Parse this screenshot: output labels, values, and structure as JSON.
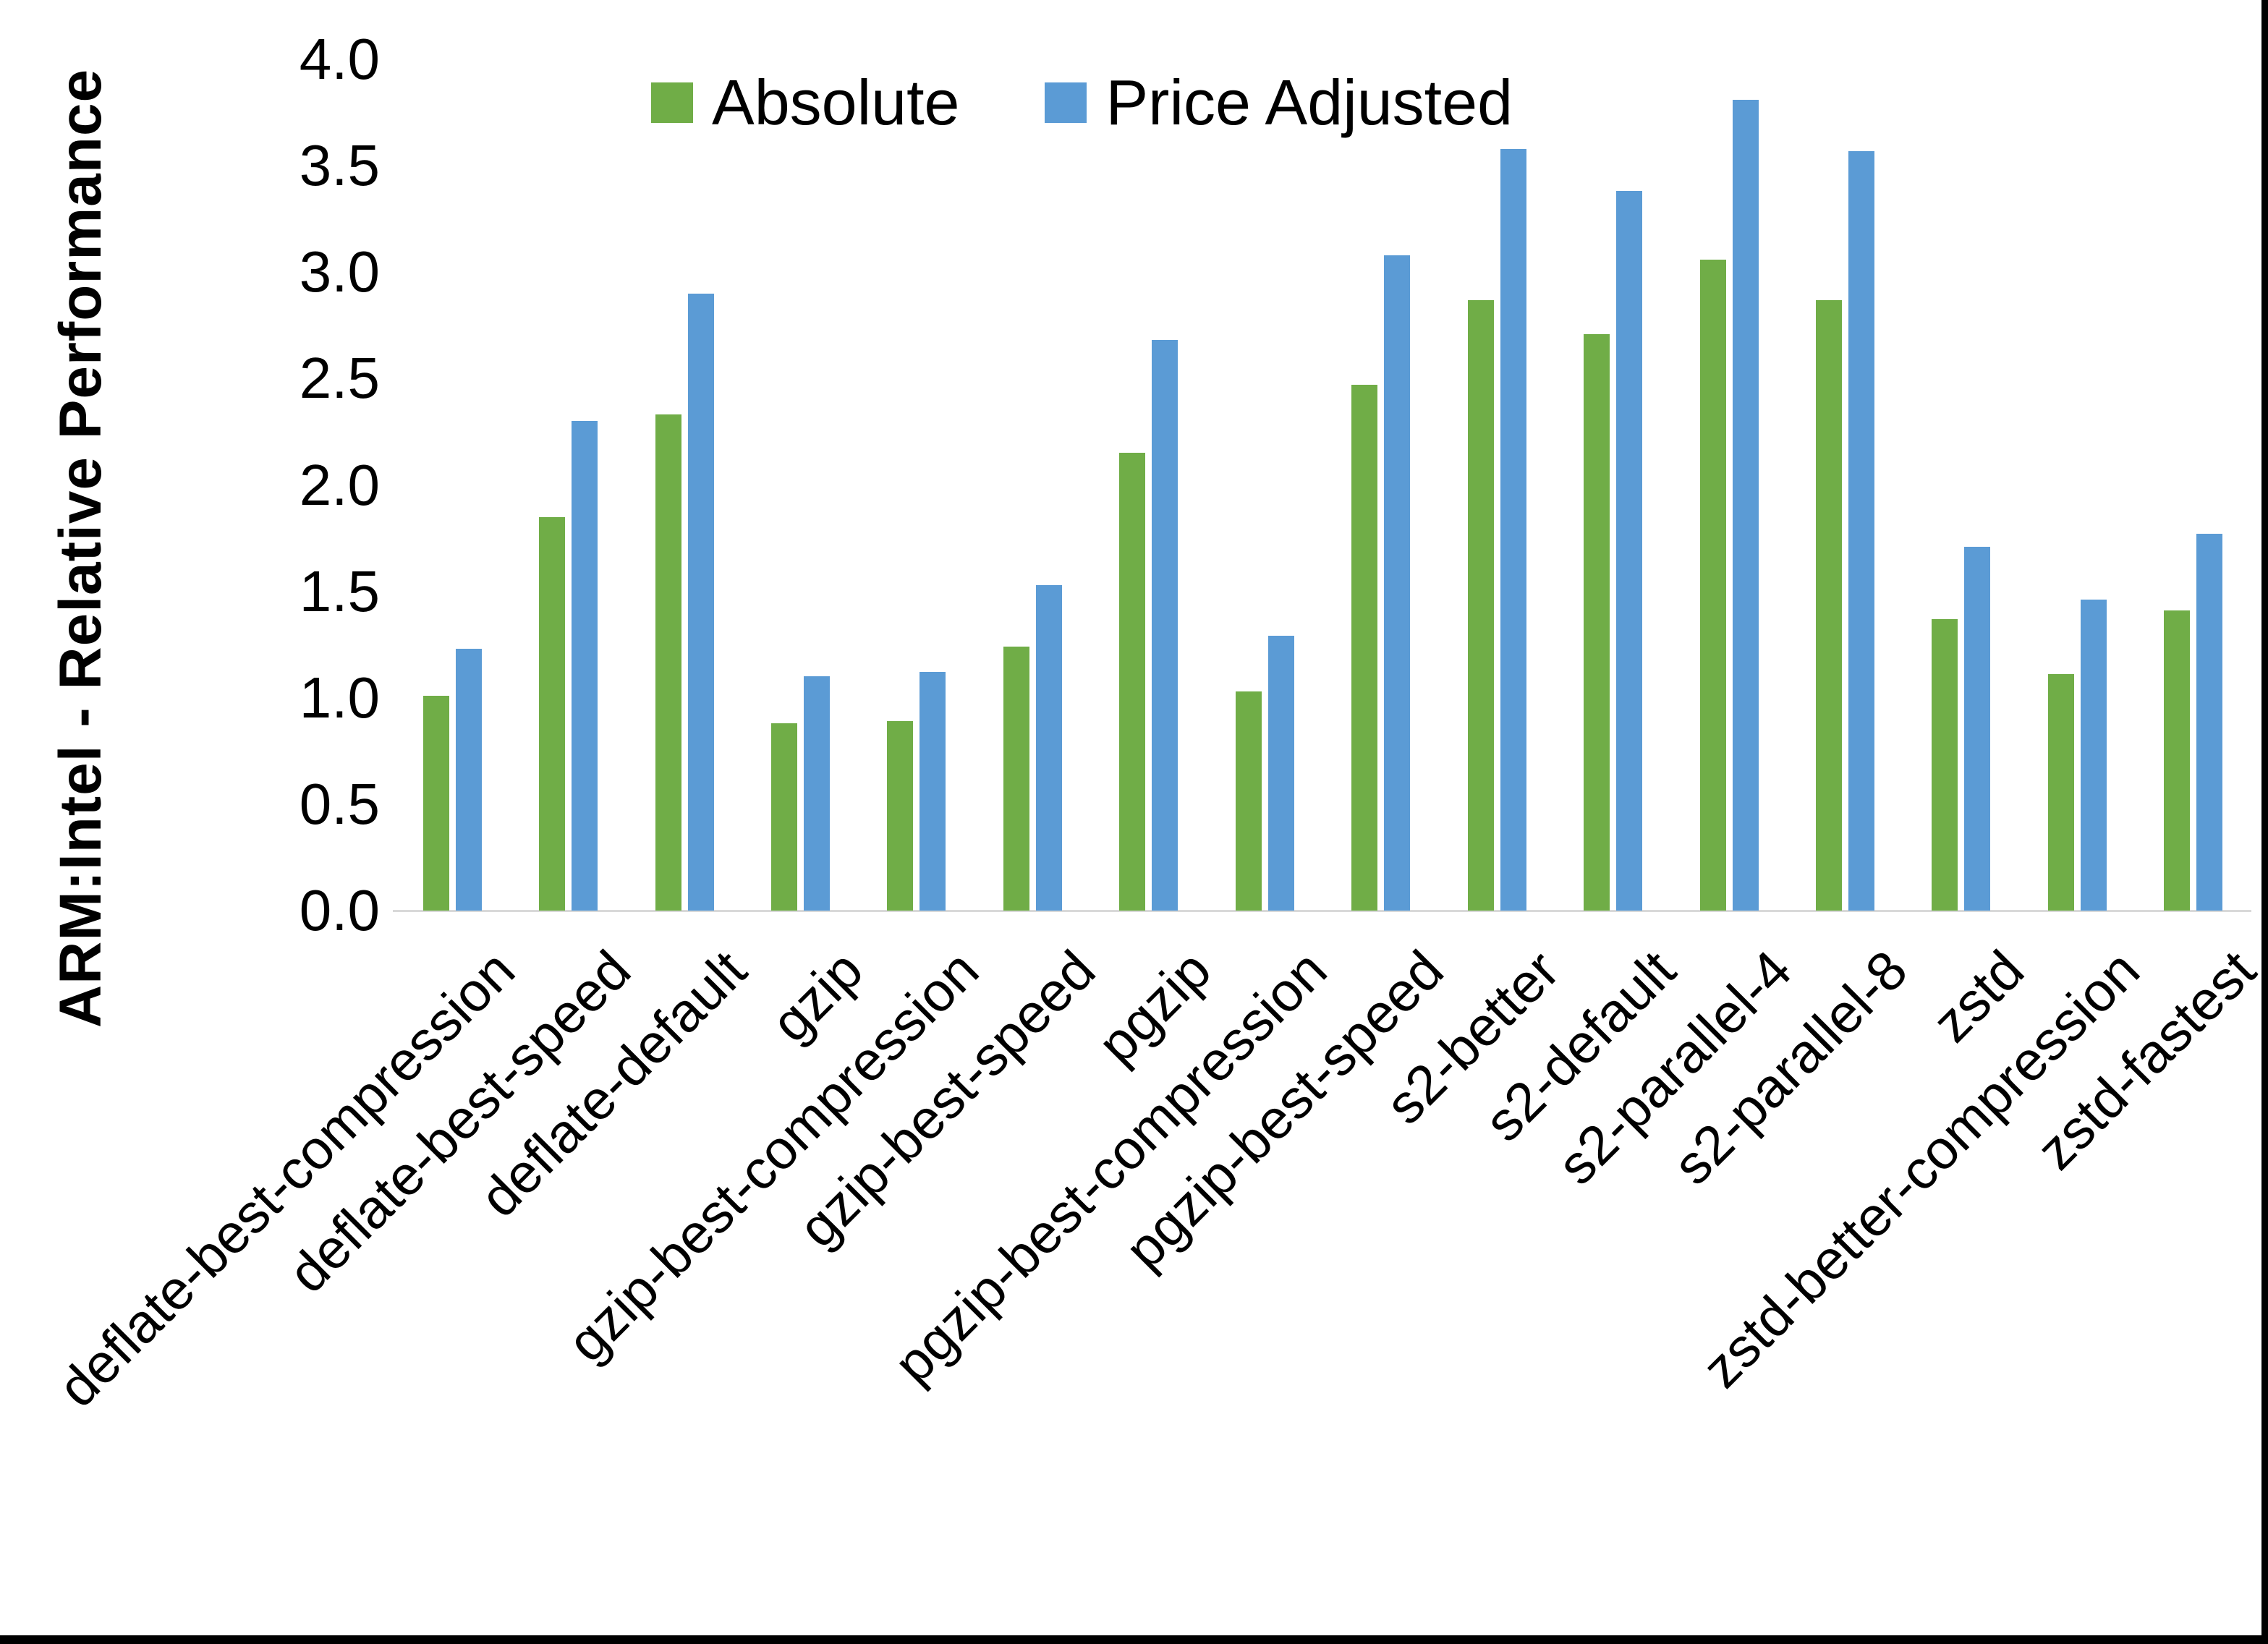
{
  "chart_data": {
    "type": "bar",
    "title": "",
    "xlabel": "",
    "ylabel": "ARM:Intel - Relative Performance",
    "ylim": [
      0.0,
      4.0
    ],
    "ytick_labels": [
      "0.0",
      "0.5",
      "1.0",
      "1.5",
      "2.0",
      "2.5",
      "3.0",
      "3.5",
      "4.0"
    ],
    "grid": false,
    "legend_position": "top-center",
    "categories": [
      "deflate-best-compression",
      "deflate-best-speed",
      "deflate-default",
      "gzip",
      "gzip-best-compression",
      "gzip-best-speed",
      "pgzip",
      "pgzip-best-compression",
      "pgzip-best-speed",
      "s2-better",
      "s2-default",
      "s2-parallel-4",
      "s2-parallel-8",
      "zstd",
      "zstd-better-compression",
      "zstd-fastest"
    ],
    "series": [
      {
        "name": "Absolute",
        "color": "#70AD47",
        "values": [
          1.01,
          1.85,
          2.33,
          0.88,
          0.89,
          1.24,
          2.15,
          1.03,
          2.47,
          2.87,
          2.71,
          3.06,
          2.87,
          1.37,
          1.11,
          1.41
        ]
      },
      {
        "name": "Price Adjusted",
        "color": "#5B9BD5",
        "values": [
          1.23,
          2.3,
          2.9,
          1.1,
          1.12,
          1.53,
          2.68,
          1.29,
          3.08,
          3.58,
          3.38,
          3.81,
          3.57,
          1.71,
          1.46,
          1.77
        ]
      }
    ],
    "axis_line_color": "#D9D9D9",
    "background_color": "#FFFFFF",
    "border_color": "#000000"
  }
}
